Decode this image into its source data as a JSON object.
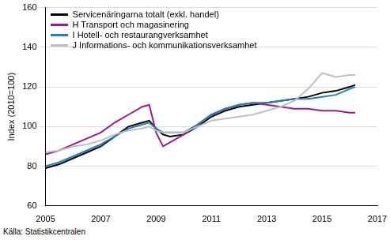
{
  "chart_data": {
    "type": "line",
    "y_label": "Index (2010=100)",
    "source": "Källa: Statistikcentralen",
    "x": [
      2005,
      2005.5,
      2006,
      2006.5,
      2007,
      2007.5,
      2008,
      2008.5,
      2008.75,
      2009,
      2009.25,
      2009.5,
      2010,
      2010.5,
      2011,
      2011.5,
      2012,
      2012.5,
      2013,
      2013.5,
      2014,
      2014.5,
      2015,
      2015.5,
      2016,
      2016.2
    ],
    "series": [
      {
        "name": "Servicenäringarna totalt (exkl. handel)",
        "color": "#000000",
        "values": [
          79,
          81,
          84,
          87,
          90,
          95,
          100,
          102,
          103,
          99,
          96,
          95,
          96,
          100,
          105,
          108,
          110,
          111,
          112,
          113,
          114,
          115,
          117,
          118,
          120,
          121
        ]
      },
      {
        "name": "H Transport och magasinering",
        "color": "#a3178f",
        "values": [
          86,
          88,
          91,
          94,
          97,
          102,
          106,
          110,
          111,
          97,
          90,
          92,
          96,
          101,
          106,
          109,
          111,
          112,
          111,
          110,
          109,
          109,
          108,
          108,
          107,
          107
        ]
      },
      {
        "name": "I Hotell- och restaurangverksamhet",
        "color": "#1f7fc1",
        "values": [
          80,
          82,
          85,
          88,
          91,
          95,
          99,
          101,
          102,
          99,
          97,
          97,
          97,
          101,
          106,
          109,
          111,
          112,
          112,
          113,
          114,
          114,
          115,
          116,
          119,
          120
        ]
      },
      {
        "name": "J Informations- och kommunikationsverksamhet",
        "color": "#c0c0c0",
        "values": [
          87,
          88,
          90,
          91,
          93,
          96,
          98,
          99,
          100,
          98,
          97,
          97,
          97,
          100,
          103,
          104,
          105,
          106,
          108,
          110,
          113,
          119,
          127,
          125,
          126,
          126
        ]
      }
    ],
    "xlim": [
      2005,
      2017
    ],
    "xticks": [
      2005,
      2007,
      2009,
      2011,
      2013,
      2015,
      2017
    ],
    "ylim": [
      60,
      160
    ],
    "yticks": [
      60,
      80,
      100,
      120,
      140,
      160
    ],
    "grid": true,
    "legend": "upper left"
  }
}
